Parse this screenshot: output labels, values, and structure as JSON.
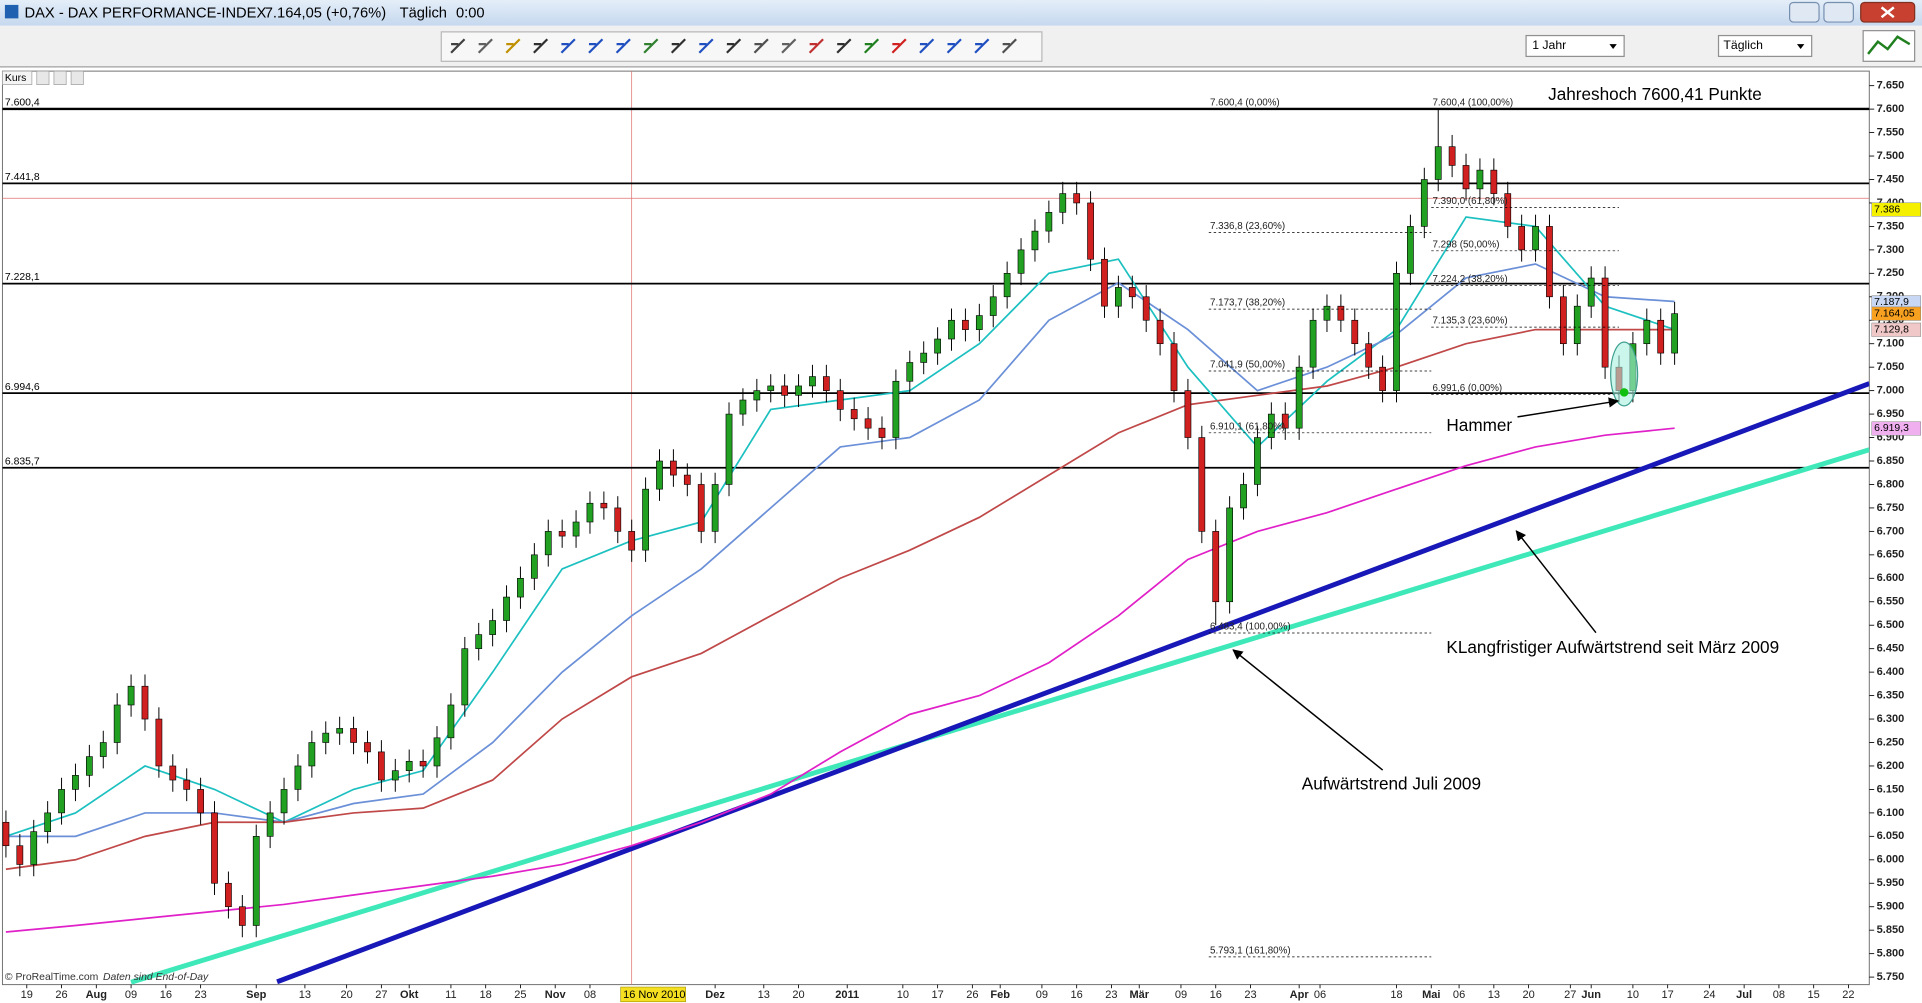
{
  "window": {
    "title": "DAX - DAX PERFORMANCE-INDEX",
    "quote": "7.164,05 (+0,76%)",
    "interval": "Täglich",
    "time": "0:00",
    "period_select": "1 Jahr",
    "interval_select": "Täglich",
    "panel_label": "Kurs",
    "footer": "© ProRealTime.com",
    "footer_note": "Daten sind End-of-Day"
  },
  "chart_data": {
    "type": "candlestick",
    "up_color": "#22a022",
    "down_color": "#d02020",
    "grid": false,
    "xlim": [
      -0.5,
      268
    ],
    "ylim": [
      5734,
      7681
    ],
    "x": [
      0,
      2,
      4,
      6,
      8,
      10,
      12,
      14,
      16,
      18,
      20,
      22,
      24,
      26,
      28,
      30,
      32,
      34,
      36,
      38,
      40,
      42,
      44,
      46,
      48,
      50,
      52,
      54,
      56,
      58,
      60,
      62,
      64,
      66,
      68,
      70,
      72,
      74,
      76,
      78,
      80,
      82,
      84,
      86,
      88,
      90,
      92,
      94,
      96,
      98,
      100,
      102,
      104,
      106,
      108,
      110,
      112,
      114,
      116,
      118,
      120,
      122,
      124,
      126,
      128,
      130,
      132,
      134,
      136,
      138,
      140,
      142,
      144,
      146,
      148,
      150,
      152,
      154,
      156,
      158,
      160,
      162,
      164,
      166,
      168,
      170,
      172,
      174,
      176,
      178,
      180,
      182,
      184,
      186,
      188,
      190,
      192,
      194,
      196,
      198,
      200,
      202,
      204,
      206,
      208,
      210,
      212,
      214,
      216,
      218,
      220,
      222,
      224,
      226,
      228,
      230,
      232,
      234,
      236,
      238,
      240
    ],
    "open": [
      6080,
      6030,
      5990,
      6060,
      6100,
      6150,
      6180,
      6220,
      6250,
      6330,
      6370,
      6300,
      6200,
      6170,
      6150,
      6100,
      5950,
      5900,
      5860,
      6050,
      6100,
      6150,
      6200,
      6250,
      6270,
      6280,
      6250,
      6230,
      6170,
      6190,
      6210,
      6200,
      6260,
      6330,
      6450,
      6480,
      6510,
      6560,
      6600,
      6650,
      6700,
      6690,
      6720,
      6760,
      6750,
      6700,
      6660,
      6790,
      6850,
      6820,
      6800,
      6700,
      6800,
      6950,
      6980,
      7000,
      7010,
      6990,
      7010,
      7030,
      7000,
      6960,
      6940,
      6920,
      6900,
      7020,
      7060,
      7080,
      7110,
      7150,
      7130,
      7160,
      7200,
      7250,
      7300,
      7340,
      7380,
      7420,
      7400,
      7280,
      7180,
      7220,
      7200,
      7150,
      7100,
      7000,
      6900,
      6700,
      6550,
      6750,
      6800,
      6900,
      6950,
      6920,
      7050,
      7150,
      7180,
      7150,
      7100,
      7050,
      7000,
      7250,
      7350,
      7450,
      7520,
      7480,
      7430,
      7470,
      7420,
      7350,
      7300,
      7350,
      7200,
      7100,
      7180,
      7240,
      7050,
      7000,
      7100,
      7150,
      7080
    ],
    "high": [
      6105,
      6055,
      6085,
      6125,
      6175,
      6205,
      6245,
      6275,
      6355,
      6395,
      6395,
      6325,
      6225,
      6195,
      6175,
      6125,
      5975,
      5925,
      6075,
      6125,
      6175,
      6225,
      6275,
      6295,
      6305,
      6305,
      6275,
      6255,
      6215,
      6235,
      6235,
      6285,
      6355,
      6475,
      6505,
      6535,
      6585,
      6625,
      6675,
      6725,
      6725,
      6745,
      6785,
      6785,
      6775,
      6725,
      6815,
      6875,
      6875,
      6845,
      6825,
      6825,
      6975,
      7005,
      7025,
      7035,
      7035,
      7035,
      7055,
      7055,
      7025,
      6985,
      6965,
      6945,
      7045,
      7085,
      7105,
      7135,
      7175,
      7175,
      7185,
      7225,
      7275,
      7325,
      7365,
      7405,
      7445,
      7445,
      7425,
      7305,
      7245,
      7245,
      7225,
      7175,
      7125,
      7025,
      6925,
      6725,
      6775,
      6825,
      6925,
      6975,
      6975,
      7075,
      7175,
      7205,
      7205,
      7175,
      7125,
      7075,
      7275,
      7375,
      7475,
      7600,
      7545,
      7505,
      7495,
      7495,
      7445,
      7375,
      7375,
      7375,
      7225,
      7205,
      7265,
      7265,
      7075,
      7125,
      7175,
      7175,
      7189
    ],
    "low": [
      6005,
      5965,
      5965,
      6035,
      6075,
      6125,
      6155,
      6195,
      6225,
      6305,
      6275,
      6175,
      6145,
      6125,
      6075,
      5925,
      5875,
      5835,
      5835,
      6025,
      6075,
      6125,
      6175,
      6225,
      6245,
      6225,
      6205,
      6145,
      6145,
      6165,
      6175,
      6175,
      6235,
      6305,
      6425,
      6455,
      6485,
      6535,
      6575,
      6625,
      6665,
      6665,
      6695,
      6725,
      6675,
      6635,
      6635,
      6765,
      6795,
      6775,
      6675,
      6675,
      6775,
      6925,
      6955,
      6975,
      6965,
      6965,
      6985,
      6975,
      6935,
      6915,
      6895,
      6875,
      6875,
      6995,
      7035,
      7055,
      7085,
      7105,
      7105,
      7135,
      7175,
      7225,
      7275,
      7315,
      7355,
      7375,
      7255,
      7155,
      7155,
      7175,
      7125,
      7075,
      6975,
      6875,
      6675,
      6500,
      6525,
      6725,
      6775,
      6875,
      6895,
      6895,
      7025,
      7125,
      7125,
      7075,
      7025,
      6975,
      6975,
      7225,
      7325,
      7425,
      7455,
      7405,
      7405,
      7395,
      7325,
      7275,
      7275,
      7175,
      7075,
      7075,
      7155,
      7025,
      6975,
      6975,
      7075,
      7055,
      7055
    ],
    "close": [
      6030,
      5990,
      6060,
      6100,
      6150,
      6180,
      6220,
      6250,
      6330,
      6370,
      6300,
      6200,
      6170,
      6150,
      6100,
      5950,
      5900,
      5860,
      6050,
      6100,
      6150,
      6200,
      6250,
      6270,
      6280,
      6250,
      6230,
      6170,
      6190,
      6210,
      6200,
      6260,
      6330,
      6450,
      6480,
      6510,
      6560,
      6600,
      6650,
      6700,
      6690,
      6720,
      6760,
      6750,
      6700,
      6660,
      6790,
      6850,
      6820,
      6800,
      6700,
      6800,
      6950,
      6980,
      7000,
      7010,
      6990,
      7010,
      7030,
      7000,
      6960,
      6940,
      6920,
      6900,
      7020,
      7060,
      7080,
      7110,
      7150,
      7130,
      7160,
      7200,
      7250,
      7300,
      7340,
      7380,
      7420,
      7400,
      7280,
      7180,
      7220,
      7200,
      7150,
      7100,
      7000,
      6900,
      6700,
      6550,
      6750,
      6800,
      6900,
      6950,
      6920,
      7050,
      7150,
      7180,
      7150,
      7100,
      7050,
      7000,
      7250,
      7350,
      7450,
      7520,
      7480,
      7430,
      7470,
      7420,
      7350,
      7300,
      7350,
      7200,
      7100,
      7180,
      7240,
      7050,
      7000,
      7100,
      7150,
      7080,
      7164.05
    ],
    "series": [
      {
        "color": "#1cc0c0",
        "x": [
          0,
          10,
          20,
          30,
          40,
          50,
          60,
          70,
          80,
          90,
          100,
          110,
          120,
          130,
          140,
          150,
          160,
          170,
          180,
          190,
          200,
          210,
          220,
          230,
          240
        ],
        "values": [
          6050,
          6100,
          6200,
          6150,
          6080,
          6150,
          6190,
          6400,
          6620,
          6680,
          6720,
          6960,
          6980,
          7000,
          7100,
          7250,
          7280,
          7050,
          6880,
          7020,
          7130,
          7370,
          7350,
          7180,
          7130
        ]
      },
      {
        "color": "#6b90d8",
        "x": [
          0,
          10,
          20,
          30,
          40,
          50,
          60,
          70,
          80,
          90,
          100,
          110,
          120,
          130,
          140,
          150,
          160,
          170,
          180,
          190,
          200,
          210,
          220,
          230,
          240
        ],
        "values": [
          6050,
          6050,
          6100,
          6100,
          6080,
          6120,
          6140,
          6250,
          6400,
          6520,
          6620,
          6750,
          6880,
          6900,
          6980,
          7150,
          7230,
          7130,
          7000,
          7050,
          7120,
          7240,
          7270,
          7200,
          7190
        ]
      },
      {
        "color": "#c04848",
        "x": [
          0,
          10,
          20,
          30,
          40,
          50,
          60,
          70,
          80,
          90,
          100,
          110,
          120,
          130,
          140,
          150,
          160,
          170,
          180,
          190,
          200,
          210,
          220,
          230,
          240
        ],
        "values": [
          5980,
          6000,
          6050,
          6080,
          6080,
          6100,
          6110,
          6170,
          6300,
          6390,
          6440,
          6520,
          6600,
          6660,
          6730,
          6820,
          6910,
          6970,
          6990,
          7010,
          7050,
          7100,
          7130,
          7130,
          7130
        ]
      },
      {
        "color": "#e020c8",
        "x": [
          0,
          10,
          20,
          30,
          40,
          50,
          60,
          70,
          80,
          90,
          100,
          110,
          120,
          130,
          140,
          150,
          160,
          170,
          180,
          190,
          200,
          210,
          220,
          230,
          240
        ],
        "values": [
          5846,
          5860,
          5875,
          5890,
          5905,
          5925,
          5945,
          5965,
          5990,
          6030,
          6080,
          6140,
          6230,
          6310,
          6350,
          6420,
          6520,
          6640,
          6700,
          6740,
          6790,
          6840,
          6880,
          6905,
          6920
        ]
      }
    ],
    "trendlines": [
      {
        "color": "#3fe8b8",
        "x": [
          18,
          268
        ],
        "y": [
          5739,
          6874
        ]
      },
      {
        "color": "#1818b8",
        "x": [
          39,
          268
        ],
        "y": [
          5740,
          7015
        ]
      }
    ],
    "levels": [
      {
        "value": 7600.4,
        "label": "7.600,4"
      },
      {
        "value": 7441.8,
        "label": "7.441,8"
      },
      {
        "value": 7228.1,
        "label": "7.228,1"
      },
      {
        "value": 6994.6,
        "label": "6.994,6"
      },
      {
        "value": 6835.7,
        "label": "6.835,7"
      }
    ],
    "cursor": {
      "x": 90,
      "y": 7410,
      "label": "16 Nov 2010"
    },
    "fib_sets": [
      {
        "x": [
          173,
          205
        ],
        "levels": [
          {
            "value": 7600.4,
            "label": "7.600,4 (0,00%)"
          },
          {
            "value": 7336.8,
            "label": "7.336,8 (23,60%)"
          },
          {
            "value": 7173.7,
            "label": "7.173,7 (38,20%)"
          },
          {
            "value": 7041.9,
            "label": "7.041,9 (50,00%)"
          },
          {
            "value": 6910.1,
            "label": "6.910,1 (61,80%)"
          },
          {
            "value": 6483.4,
            "label": "6.483,4 (100,00%)"
          },
          {
            "value": 5793.1,
            "label": "5.793,1 (161,80%)"
          }
        ]
      },
      {
        "x": [
          205,
          232
        ],
        "levels": [
          {
            "value": 7600.4,
            "label": "7.600,4 (100,00%)"
          },
          {
            "value": 7390,
            "label": "7.390,0 (61,80%)"
          },
          {
            "value": 7298,
            "label": "7.298 (50,00%)"
          },
          {
            "value": 7224.2,
            "label": "7.224,2 (38,20%)"
          },
          {
            "value": 7135.3,
            "label": "7.135,3 (23,60%)"
          },
          {
            "value": 6991.6,
            "label": "6.991,6 (0,00%)"
          }
        ]
      }
    ],
    "price_tags": [
      {
        "value": 7386,
        "label": "7.386",
        "color": "#f4f000"
      },
      {
        "value": 7187.9,
        "label": "7.187,9",
        "color": "#c8d8f4"
      },
      {
        "value": 7164.05,
        "label": "7.164,05",
        "color": "#f8a020"
      },
      {
        "value": 7129.8,
        "label": "7.129,8",
        "color": "#f0c8c8"
      },
      {
        "value": 6919.3,
        "label": "6.919,3",
        "color": "#f0b0f0"
      }
    ],
    "annotations": [
      "Jahreshoch 7600,41 Punkte",
      "Hammer",
      "KLangfristiger Aufwärtstrend seit März 2009",
      "Aufwärtstrend Juli 2009"
    ],
    "yticks": [
      {
        "value": 7650,
        "label": "7.650"
      },
      {
        "value": 7600,
        "label": "7.600"
      },
      {
        "value": 7550,
        "label": "7.550"
      },
      {
        "value": 7500,
        "label": "7.500"
      },
      {
        "value": 7450,
        "label": "7.450"
      },
      {
        "value": 7400,
        "label": "7.400"
      },
      {
        "value": 7350,
        "label": "7.350"
      },
      {
        "value": 7300,
        "label": "7.300"
      },
      {
        "value": 7250,
        "label": "7.250"
      },
      {
        "value": 7200,
        "label": "7.200"
      },
      {
        "value": 7150,
        "label": "7.150"
      },
      {
        "value": 7100,
        "label": "7.100"
      },
      {
        "value": 7050,
        "label": "7.050"
      },
      {
        "value": 7000,
        "label": "7.000"
      },
      {
        "value": 6950,
        "label": "6.950"
      },
      {
        "value": 6900,
        "label": "6.900"
      },
      {
        "value": 6850,
        "label": "6.850"
      },
      {
        "value": 6800,
        "label": "6.800"
      },
      {
        "value": 6750,
        "label": "6.750"
      },
      {
        "value": 6700,
        "label": "6.700"
      },
      {
        "value": 6650,
        "label": "6.650"
      },
      {
        "value": 6600,
        "label": "6.600"
      },
      {
        "value": 6550,
        "label": "6.550"
      },
      {
        "value": 6500,
        "label": "6.500"
      },
      {
        "value": 6450,
        "label": "6.450"
      },
      {
        "value": 6400,
        "label": "6.400"
      },
      {
        "value": 6350,
        "label": "6.350"
      },
      {
        "value": 6300,
        "label": "6.300"
      },
      {
        "value": 6250,
        "label": "6.250"
      },
      {
        "value": 6200,
        "label": "6.200"
      },
      {
        "value": 6150,
        "label": "6.150"
      },
      {
        "value": 6100,
        "label": "6.100"
      },
      {
        "value": 6050,
        "label": "6.050"
      },
      {
        "value": 6000,
        "label": "6.000"
      },
      {
        "value": 5950,
        "label": "5.950"
      },
      {
        "value": 5900,
        "label": "5.900"
      },
      {
        "value": 5850,
        "label": "5.850"
      },
      {
        "value": 5800,
        "label": "5.800"
      },
      {
        "value": 5750,
        "label": "5.750"
      }
    ],
    "xticks": [
      {
        "value": 3,
        "label": "19"
      },
      {
        "value": 8,
        "label": "26"
      },
      {
        "value": 13,
        "label": "Aug"
      },
      {
        "value": 18,
        "label": "09"
      },
      {
        "value": 23,
        "label": "16"
      },
      {
        "value": 28,
        "label": "23"
      },
      {
        "value": 36,
        "label": "Sep"
      },
      {
        "value": 43,
        "label": "13"
      },
      {
        "value": 49,
        "label": "20"
      },
      {
        "value": 54,
        "label": "27"
      },
      {
        "value": 58,
        "label": "Okt"
      },
      {
        "value": 64,
        "label": "11"
      },
      {
        "value": 69,
        "label": "18"
      },
      {
        "value": 74,
        "label": "25"
      },
      {
        "value": 79,
        "label": "Nov"
      },
      {
        "value": 84,
        "label": "08"
      },
      {
        "value": 102,
        "label": "Dez"
      },
      {
        "value": 109,
        "label": "13"
      },
      {
        "value": 114,
        "label": "20"
      },
      {
        "value": 121,
        "label": "2011"
      },
      {
        "value": 129,
        "label": "10"
      },
      {
        "value": 134,
        "label": "17"
      },
      {
        "value": 139,
        "label": "26"
      },
      {
        "value": 143,
        "label": "Feb"
      },
      {
        "value": 149,
        "label": "09"
      },
      {
        "value": 154,
        "label": "16"
      },
      {
        "value": 159,
        "label": "23"
      },
      {
        "value": 163,
        "label": "Mär"
      },
      {
        "value": 169,
        "label": "09"
      },
      {
        "value": 174,
        "label": "16"
      },
      {
        "value": 179,
        "label": "23"
      },
      {
        "value": 186,
        "label": "Apr"
      },
      {
        "value": 189,
        "label": "06"
      },
      {
        "value": 200,
        "label": "18"
      },
      {
        "value": 205,
        "label": "Mai"
      },
      {
        "value": 209,
        "label": "06"
      },
      {
        "value": 214,
        "label": "13"
      },
      {
        "value": 219,
        "label": "20"
      },
      {
        "value": 225,
        "label": "27"
      },
      {
        "value": 228,
        "label": "Jun"
      },
      {
        "value": 234,
        "label": "10"
      },
      {
        "value": 239,
        "label": "17"
      },
      {
        "value": 245,
        "label": "24"
      },
      {
        "value": 250,
        "label": "Jul"
      },
      {
        "value": 255,
        "label": "08"
      },
      {
        "value": 260,
        "label": "15"
      },
      {
        "value": 265,
        "label": "22"
      }
    ]
  }
}
